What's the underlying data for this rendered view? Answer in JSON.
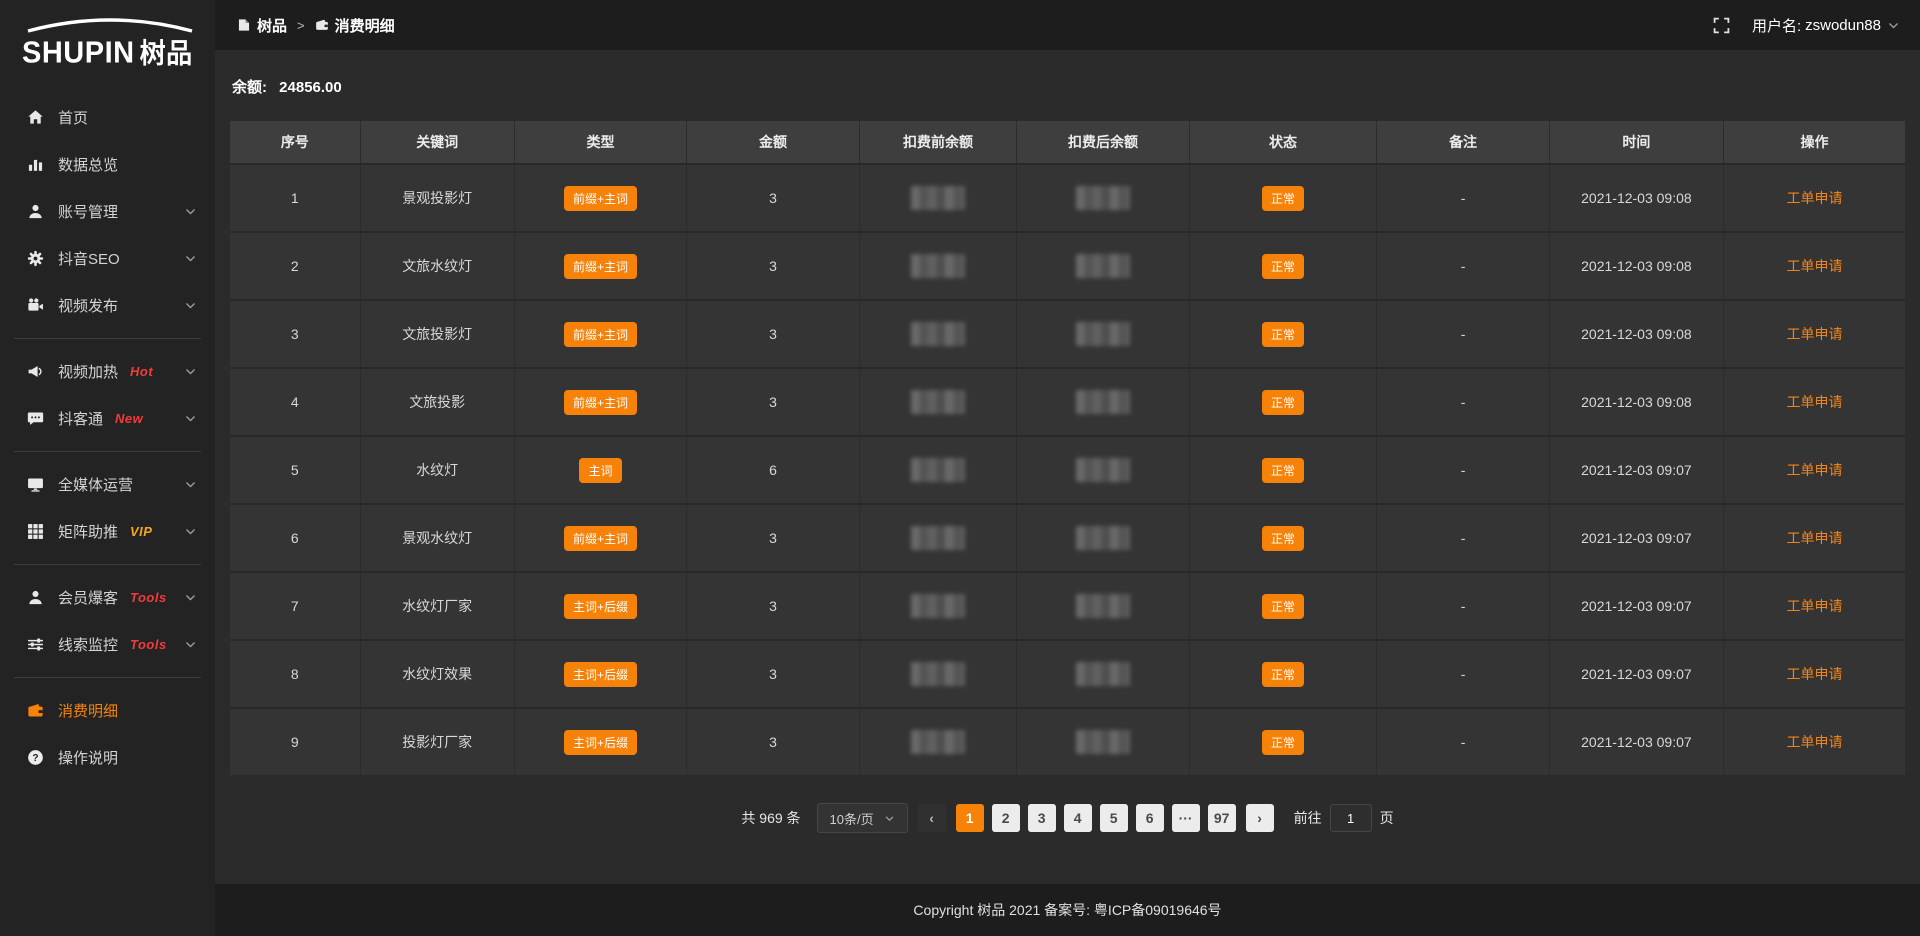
{
  "colors": {
    "accent": "#f7820a",
    "badge_red": "#f23c3c",
    "badge_vip": "#f5a623"
  },
  "sidebar": {
    "logo_en": "SHUPIN",
    "logo_cn": "树品",
    "groups": [
      [
        {
          "name": "home",
          "label": "首页",
          "icon": "home"
        },
        {
          "name": "data-overview",
          "label": "数据总览",
          "icon": "bar-chart"
        },
        {
          "name": "account-management",
          "label": "账号管理",
          "icon": "user",
          "chevron": true
        },
        {
          "name": "douyin-seo",
          "label": "抖音SEO",
          "icon": "gear",
          "chevron": true
        },
        {
          "name": "video-publish",
          "label": "视频发布",
          "icon": "video-camera",
          "chevron": true
        }
      ],
      [
        {
          "name": "video-heat",
          "label": "视频加热",
          "icon": "megaphone",
          "badge": "Hot",
          "badge_color": "#f23c3c",
          "chevron": true
        },
        {
          "name": "douketong",
          "label": "抖客通",
          "icon": "chat",
          "badge": "New",
          "badge_color": "#f23c3c",
          "chevron": true
        }
      ],
      [
        {
          "name": "all-media-operation",
          "label": "全媒体运营",
          "icon": "monitor",
          "chevron": true
        },
        {
          "name": "matrix-boost",
          "label": "矩阵助推",
          "icon": "grid",
          "badge": "VIP",
          "badge_color": "#f5a623",
          "chevron": true
        }
      ],
      [
        {
          "name": "member-baoke",
          "label": "会员爆客",
          "icon": "user",
          "badge": "Tools",
          "badge_color": "#f23c3c",
          "chevron": true
        },
        {
          "name": "lead-monitor",
          "label": "线索监控",
          "icon": "sliders",
          "badge": "Tools",
          "badge_color": "#f23c3c",
          "chevron": true
        }
      ],
      [
        {
          "name": "consumption-detail",
          "label": "消费明细",
          "icon": "wallet",
          "active": true
        },
        {
          "name": "operation-guide",
          "label": "操作说明",
          "icon": "question"
        }
      ]
    ]
  },
  "header": {
    "breadcrumb": [
      {
        "label": "树品",
        "icon": "doc"
      },
      {
        "label": "消费明细",
        "icon": "wallet"
      }
    ],
    "breadcrumb_separator": ">",
    "username_label": "用户名:",
    "username": "zswodun88"
  },
  "main": {
    "balance_label": "余额:",
    "balance_value": "24856.00",
    "table": {
      "columns": [
        "序号",
        "关键词",
        "类型",
        "金额",
        "扣费前余额",
        "扣费后余额",
        "状态",
        "备注",
        "时间",
        "操作"
      ],
      "rows": [
        {
          "no": "1",
          "keyword": "景观投影灯",
          "type": "前缀+主词",
          "amount": "3",
          "status": "正常",
          "remark": "-",
          "time": "2021-12-03 09:08",
          "action": "工单申请"
        },
        {
          "no": "2",
          "keyword": "文旅水纹灯",
          "type": "前缀+主词",
          "amount": "3",
          "status": "正常",
          "remark": "-",
          "time": "2021-12-03 09:08",
          "action": "工单申请"
        },
        {
          "no": "3",
          "keyword": "文旅投影灯",
          "type": "前缀+主词",
          "amount": "3",
          "status": "正常",
          "remark": "-",
          "time": "2021-12-03 09:08",
          "action": "工单申请"
        },
        {
          "no": "4",
          "keyword": "文旅投影",
          "type": "前缀+主词",
          "amount": "3",
          "status": "正常",
          "remark": "-",
          "time": "2021-12-03 09:08",
          "action": "工单申请"
        },
        {
          "no": "5",
          "keyword": "水纹灯",
          "type": "主词",
          "amount": "6",
          "status": "正常",
          "remark": "-",
          "time": "2021-12-03 09:07",
          "action": "工单申请"
        },
        {
          "no": "6",
          "keyword": "景观水纹灯",
          "type": "前缀+主词",
          "amount": "3",
          "status": "正常",
          "remark": "-",
          "time": "2021-12-03 09:07",
          "action": "工单申请"
        },
        {
          "no": "7",
          "keyword": "水纹灯厂家",
          "type": "主词+后缀",
          "amount": "3",
          "status": "正常",
          "remark": "-",
          "time": "2021-12-03 09:07",
          "action": "工单申请"
        },
        {
          "no": "8",
          "keyword": "水纹灯效果",
          "type": "主词+后缀",
          "amount": "3",
          "status": "正常",
          "remark": "-",
          "time": "2021-12-03 09:07",
          "action": "工单申请"
        },
        {
          "no": "9",
          "keyword": "投影灯厂家",
          "type": "主词+后缀",
          "amount": "3",
          "status": "正常",
          "remark": "-",
          "time": "2021-12-03 09:07",
          "action": "工单申请"
        }
      ]
    },
    "pagination": {
      "total_text": "共 969 条",
      "page_size": "10条/页",
      "pages": [
        "1",
        "2",
        "3",
        "4",
        "5",
        "6",
        "···",
        "97"
      ],
      "active_page": "1",
      "prev_label": "‹",
      "next_label": "›",
      "goto_label": "前往",
      "goto_value": "1",
      "goto_suffix": "页"
    }
  },
  "footer": {
    "copyright": "Copyright 树品 2021 备案号: 粤ICP备09019646号"
  }
}
